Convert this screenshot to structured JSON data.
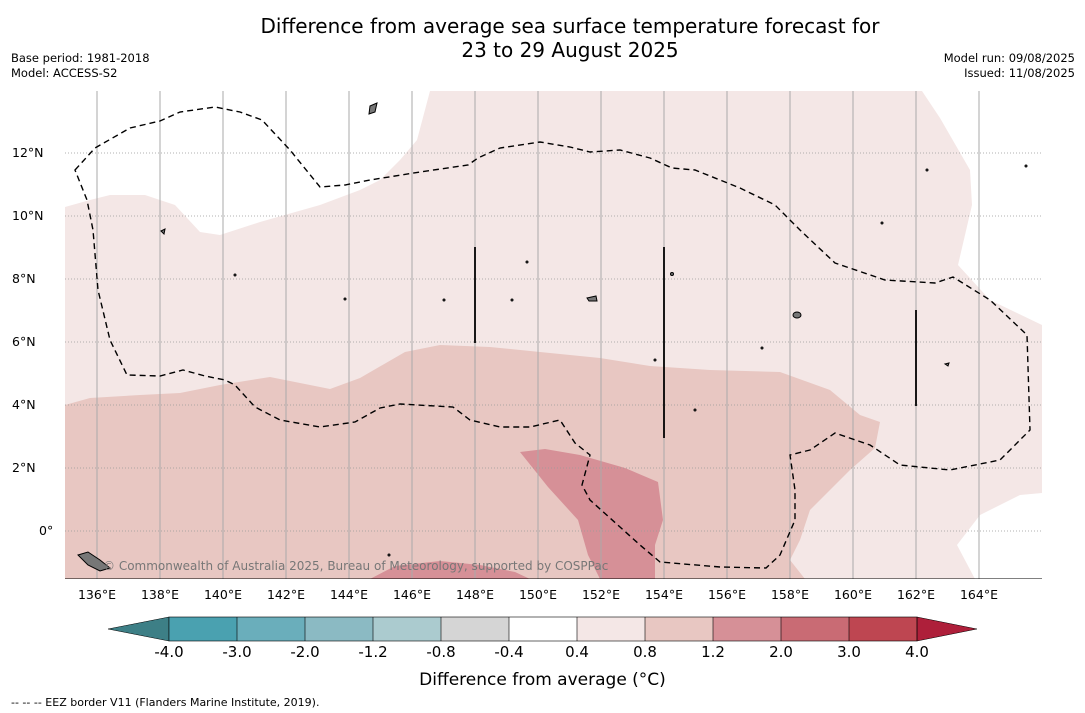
{
  "title_line1": "Difference from average sea surface temperature forecast for",
  "title_line2": "23 to 29 August 2025",
  "meta_left": {
    "base_period": "Base period: 1981-2018",
    "model": "Model: ACCESS-S2"
  },
  "meta_right": {
    "model_run": "Model run: 09/08/2025",
    "issued": "Issued: 11/08/2025"
  },
  "lat_labels": [
    "12°N",
    "10°N",
    "8°N",
    "6°N",
    "4°N",
    "2°N",
    "0°"
  ],
  "lon_labels": [
    "136°E",
    "138°E",
    "140°E",
    "142°E",
    "144°E",
    "146°E",
    "148°E",
    "150°E",
    "152°E",
    "154°E",
    "156°E",
    "158°E",
    "160°E",
    "162°E",
    "164°E"
  ],
  "copyright": "© Commonwealth of Australia 2025, Bureau of Meteorology, supported by COSPPac",
  "colorbar": {
    "tick_labels": [
      "-4.0",
      "-3.0",
      "-2.0",
      "-1.2",
      "-0.8",
      "-0.4",
      "0.4",
      "0.8",
      "1.2",
      "2.0",
      "3.0",
      "4.0"
    ],
    "colors": [
      "#3d7f86",
      "#4aa1b0",
      "#6aaebb",
      "#8bbac3",
      "#abcbcf",
      "#d5d5d5",
      "#ffffff",
      "#f4e7e6",
      "#e8c7c2",
      "#d69097",
      "#c96b74",
      "#be4651",
      "#ae1f3a"
    ],
    "label": "Difference from average (°C)"
  },
  "footnote": "--  --  -- EEZ border V11 (Flanders Marine Institute, 2019)."
}
